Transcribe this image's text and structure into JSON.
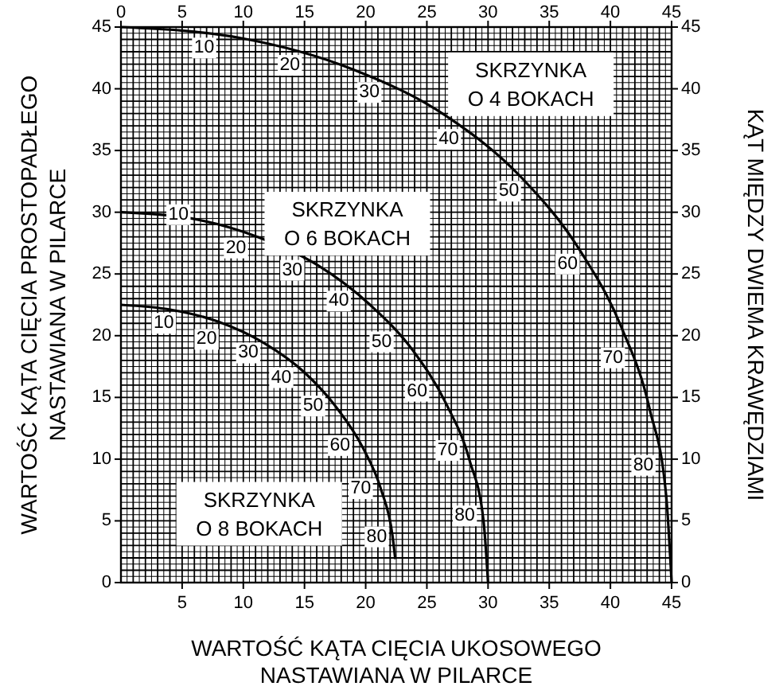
{
  "chart_data": {
    "type": "line",
    "xlabel": "WARTOŚĆ KĄTA CIĘCIA UKOSOWEGO NASTAWIANA W PILARCE",
    "ylabel": "WARTOŚĆ KĄTA CIĘCIA PROSTOPADŁEGO NASTAWIANA W PILARCE",
    "y2label": "KĄT MIĘDZY DWIEMA KRAWĘDZIAMI",
    "xlim": [
      0,
      45
    ],
    "xticks": [
      5,
      10,
      15,
      20,
      25,
      30,
      35,
      40,
      45
    ],
    "x2lim": [
      0,
      45
    ],
    "x2ticks": [
      0,
      5,
      10,
      15,
      20,
      25,
      30,
      35,
      40,
      45
    ],
    "ylim": [
      0,
      45
    ],
    "yticks": [
      0,
      5,
      10,
      15,
      20,
      25,
      30,
      35,
      40,
      45
    ],
    "y2lim": [
      0,
      45
    ],
    "y2ticks": [
      0,
      5,
      10,
      15,
      20,
      25,
      30,
      35,
      40,
      45
    ],
    "grid": true,
    "marker": "none",
    "line_style": "solid",
    "series": [
      {
        "name": "SKRZYNKA O 4 BOKACH",
        "color": "#000000",
        "x": [
          0,
          9.85,
          18.88,
          26.57,
          32.74,
          37.45,
          40.89,
          43.22,
          44.56,
          45
        ],
        "values": [
          45,
          44.1,
          41.6,
          37.8,
          32.8,
          27,
          20.7,
          14,
          7,
          0
        ]
      },
      {
        "name": "SKRZYNKA O 6 BOKACH",
        "color": "#000000",
        "x": [
          0,
          5.72,
          11.17,
          16.1,
          20.36,
          23.86,
          26.57,
          28.49,
          29.63,
          30
        ],
        "values": [
          30,
          29.5,
          28,
          25.7,
          22.5,
          18.8,
          14.5,
          9.9,
          5,
          0
        ]
      },
      {
        "name": "SKRZYNKA O 8 BOKACH",
        "color": "#000000",
        "x": [
          0,
          4.11,
          8.06,
          11.7,
          14.91,
          17.6,
          19.73,
          21.27,
          22.19,
          22.42
        ],
        "values": [
          22.5,
          22.1,
          21.1,
          19.4,
          17.1,
          14.2,
          11,
          7.5,
          3.8,
          1.9
        ]
      }
    ],
    "annotations": [
      {
        "text": "10",
        "x": 6.8,
        "y": 43.3
      },
      {
        "text": "20",
        "x": 13.8,
        "y": 41.9
      },
      {
        "text": "30",
        "x": 20.3,
        "y": 39.7
      },
      {
        "text": "40",
        "x": 26.8,
        "y": 35.9
      },
      {
        "text": "50",
        "x": 31.7,
        "y": 31.7
      },
      {
        "text": "60",
        "x": 36.5,
        "y": 25.8
      },
      {
        "text": "70",
        "x": 40.2,
        "y": 18.2
      },
      {
        "text": "80",
        "x": 42.7,
        "y": 9.5
      },
      {
        "text": "10",
        "x": 4.7,
        "y": 29.8
      },
      {
        "text": "20",
        "x": 9.4,
        "y": 27.1
      },
      {
        "text": "30",
        "x": 14,
        "y": 25.3
      },
      {
        "text": "40",
        "x": 17.8,
        "y": 22.8
      },
      {
        "text": "50",
        "x": 21.3,
        "y": 19.5
      },
      {
        "text": "60",
        "x": 24.2,
        "y": 15.5
      },
      {
        "text": "70",
        "x": 26.7,
        "y": 10.7
      },
      {
        "text": "80",
        "x": 28.1,
        "y": 5.4
      },
      {
        "text": "10",
        "x": 3.5,
        "y": 21
      },
      {
        "text": "20",
        "x": 7,
        "y": 19.7
      },
      {
        "text": "30",
        "x": 10.4,
        "y": 18.6
      },
      {
        "text": "40",
        "x": 13.1,
        "y": 16.6
      },
      {
        "text": "50",
        "x": 15.7,
        "y": 14.3
      },
      {
        "text": "60",
        "x": 17.9,
        "y": 11.1
      },
      {
        "text": "70",
        "x": 19.6,
        "y": 7.6
      },
      {
        "text": "80",
        "x": 20.9,
        "y": 3.7
      }
    ]
  }
}
